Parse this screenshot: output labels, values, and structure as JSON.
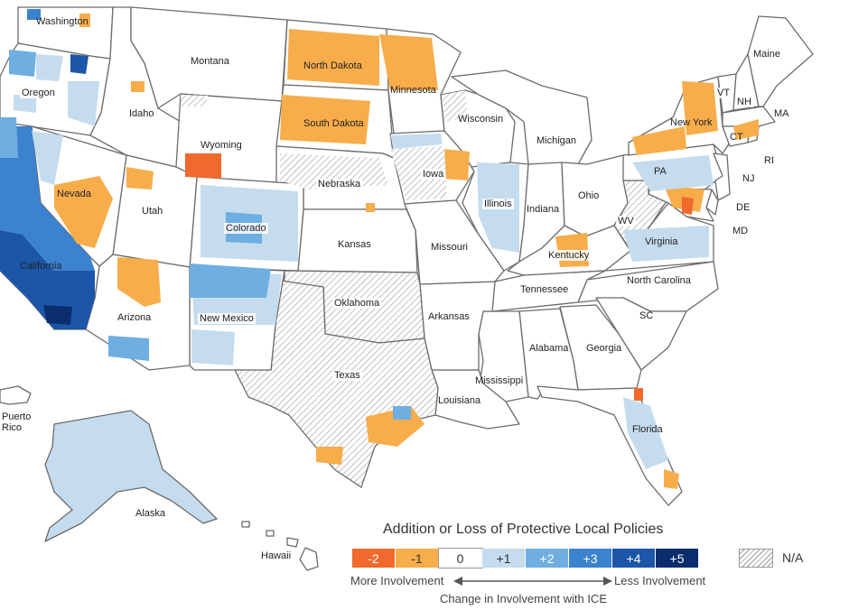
{
  "legend": {
    "title": "Addition or Loss of Protective Local Policies",
    "items": [
      {
        "label": "-2",
        "color": "#ef6a2c",
        "text_color": "#ffffff"
      },
      {
        "label": "-1",
        "color": "#f7ad4a",
        "text_color": "#333333"
      },
      {
        "label": "0",
        "color": "#ffffff",
        "text_color": "#333333"
      },
      {
        "label": "+1",
        "color": "#c5dcef",
        "text_color": "#333333"
      },
      {
        "label": "+2",
        "color": "#6faee0",
        "text_color": "#ffffff"
      },
      {
        "label": "+3",
        "color": "#3b82cf",
        "text_color": "#ffffff"
      },
      {
        "label": "+4",
        "color": "#1b56a8",
        "text_color": "#ffffff"
      },
      {
        "label": "+5",
        "color": "#0b2d6e",
        "text_color": "#ffffff"
      }
    ],
    "na_label": "N/A",
    "more_label": "More Involvement",
    "less_label": "Less Involvement",
    "axis_label": "Change in Involvement with ICE"
  },
  "labels": {
    "washington": "Washington",
    "oregon": "Oregon",
    "idaho": "Idaho",
    "montana": "Montana",
    "north_dakota": "North Dakota",
    "minnesota": "Minnesota",
    "south_dakota": "South Dakota",
    "wyoming": "Wyoming",
    "nevada": "Nevada",
    "utah": "Utah",
    "colorado": "Colorado",
    "nebraska": "Nebraska",
    "iowa": "Iowa",
    "wisconsin": "Wisconsin",
    "michigan": "Michigan",
    "illinois": "Illinois",
    "indiana": "Indiana",
    "ohio": "Ohio",
    "pa": "PA",
    "new_york": "New York",
    "vt": "VT",
    "nh": "NH",
    "maine": "Maine",
    "ma": "MA",
    "ct": "CT",
    "ri": "RI",
    "nj": "NJ",
    "de": "DE",
    "md": "MD",
    "wv": "WV",
    "virginia": "Virginia",
    "kentucky": "Kentucky",
    "kansas": "Kansas",
    "missouri": "Missouri",
    "california": "California",
    "arizona": "Arizona",
    "new_mexico": "New Mexico",
    "oklahoma": "Oklahoma",
    "arkansas": "Arkansas",
    "tennessee": "Tennessee",
    "north_carolina": "North Carolina",
    "sc": "SC",
    "texas": "Texas",
    "alabama": "Alabama",
    "georgia": "Georgia",
    "mississippi": "Mississippi",
    "louisiana": "Louisiana",
    "florida": "Florida",
    "puerto_rico": "Puerto\nRico",
    "alaska": "Alaska",
    "hawaii": "Hawaii"
  }
}
